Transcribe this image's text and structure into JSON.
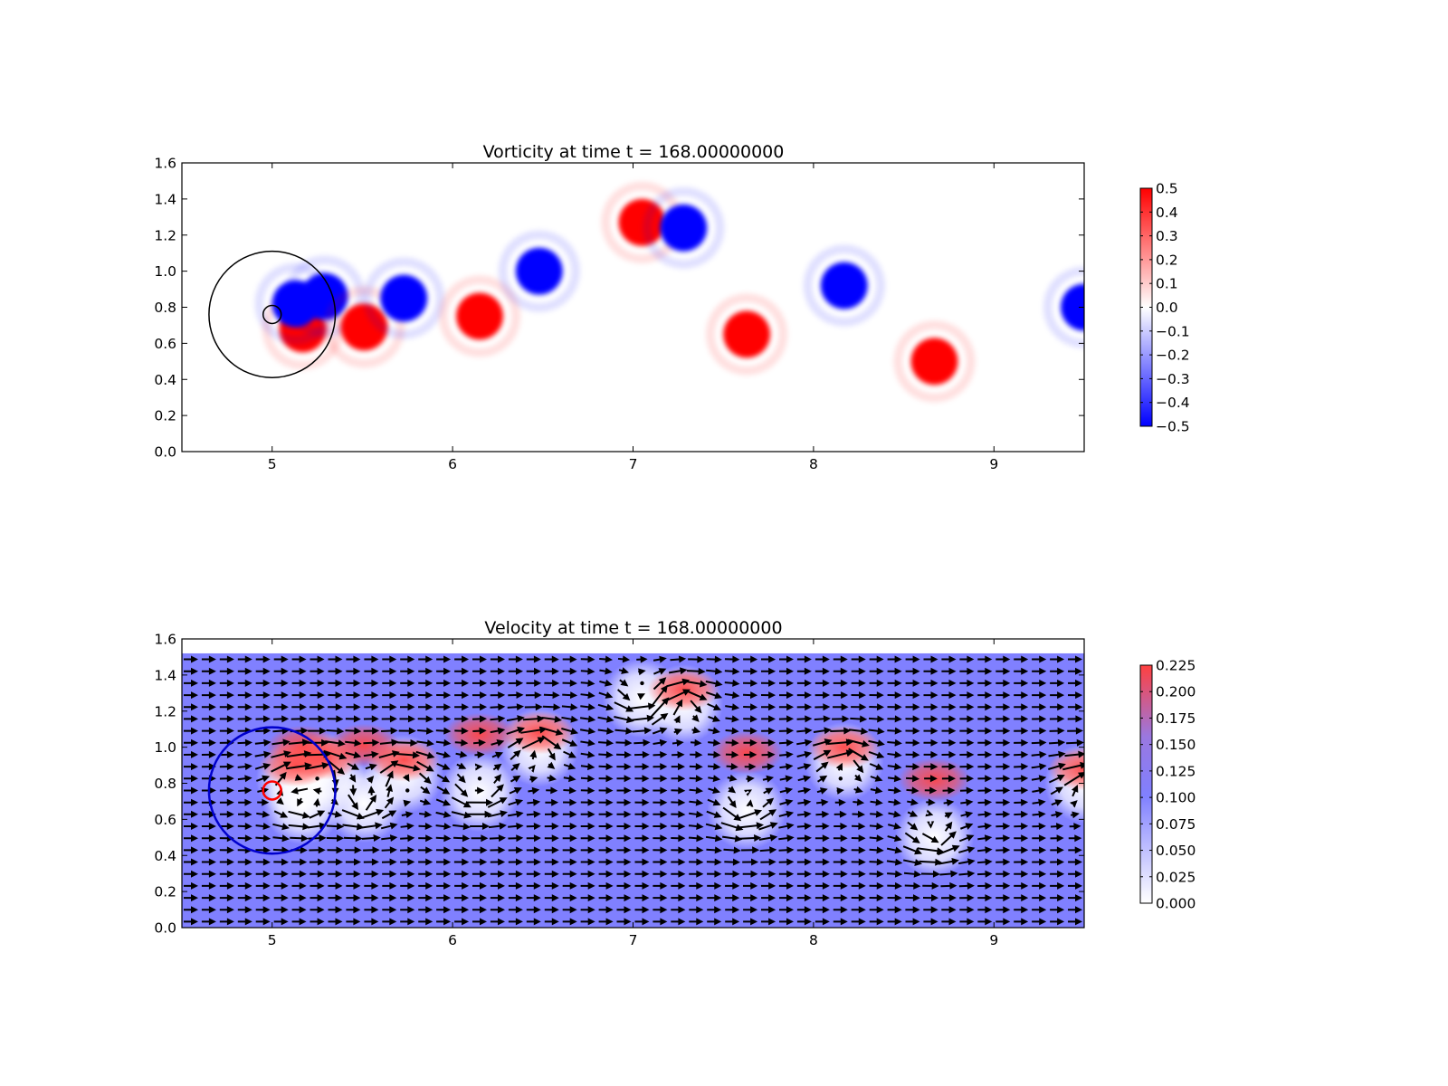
{
  "chart_data": [
    {
      "type": "heatmap",
      "title": "Vorticity at time t =   168.00000000",
      "xlim": [
        4.5,
        9.5
      ],
      "ylim": [
        0.0,
        1.6
      ],
      "xticks": [
        "5",
        "6",
        "7",
        "8",
        "9"
      ],
      "yticks": [
        "0.0",
        "0.2",
        "0.4",
        "0.6",
        "0.8",
        "1.0",
        "1.2",
        "1.4",
        "1.6"
      ],
      "colormap": "bwr",
      "clim": [
        -0.5,
        0.5
      ],
      "colorbar_ticks": [
        "0.5",
        "0.4",
        "0.3",
        "0.2",
        "0.1",
        "0.0",
        "−0.1",
        "−0.2",
        "−0.3",
        "−0.4",
        "−0.5"
      ],
      "colors": {
        "positive": "#ff0000",
        "negative": "#0000ff",
        "zero": "#ffffff"
      },
      "cylinder": {
        "center": [
          5.0,
          0.76
        ],
        "radius": 0.05,
        "color": "#000000"
      },
      "outer_circle": {
        "center": [
          5.0,
          0.76
        ],
        "radius": 0.35,
        "color": "#000000"
      },
      "vortices": [
        {
          "x": 5.17,
          "y": 0.68,
          "sign": 1
        },
        {
          "x": 5.13,
          "y": 0.82,
          "sign": -1
        },
        {
          "x": 5.29,
          "y": 0.86,
          "sign": -1
        },
        {
          "x": 5.51,
          "y": 0.69,
          "sign": 1
        },
        {
          "x": 5.73,
          "y": 0.85,
          "sign": -1
        },
        {
          "x": 6.15,
          "y": 0.75,
          "sign": 1
        },
        {
          "x": 6.48,
          "y": 1.0,
          "sign": -1
        },
        {
          "x": 7.05,
          "y": 1.27,
          "sign": 1
        },
        {
          "x": 7.28,
          "y": 1.24,
          "sign": -1
        },
        {
          "x": 7.63,
          "y": 0.65,
          "sign": 1
        },
        {
          "x": 8.17,
          "y": 0.92,
          "sign": -1
        },
        {
          "x": 8.67,
          "y": 0.5,
          "sign": 1
        },
        {
          "x": 9.5,
          "y": 0.8,
          "sign": -1
        }
      ]
    },
    {
      "type": "heatmap",
      "title": "Velocity at time t =   168.00000000",
      "xlim": [
        4.5,
        9.5
      ],
      "ylim": [
        0.0,
        1.6
      ],
      "data_ylim": [
        0.0,
        1.52
      ],
      "xticks": [
        "5",
        "6",
        "7",
        "8",
        "9"
      ],
      "yticks": [
        "0.0",
        "0.2",
        "0.4",
        "0.6",
        "0.8",
        "1.0",
        "1.2",
        "1.4",
        "1.6"
      ],
      "colormap": "white-blue-red",
      "clim": [
        0.0,
        0.225
      ],
      "colorbar_ticks": [
        "0.225",
        "0.200",
        "0.175",
        "0.150",
        "0.125",
        "0.100",
        "0.075",
        "0.050",
        "0.025",
        "0.000"
      ],
      "colors": {
        "low": "#ffffff",
        "mid": "#8080ff",
        "high": "#ff4040"
      },
      "free_stream_speed": 0.1,
      "overlay": "quiver",
      "cylinder": {
        "center": [
          5.0,
          0.76
        ],
        "radius": 0.05,
        "color": "#ff0000"
      },
      "outer_circle": {
        "center": [
          5.0,
          0.76
        ],
        "radius": 0.35,
        "color": "#0000cc"
      }
    }
  ]
}
